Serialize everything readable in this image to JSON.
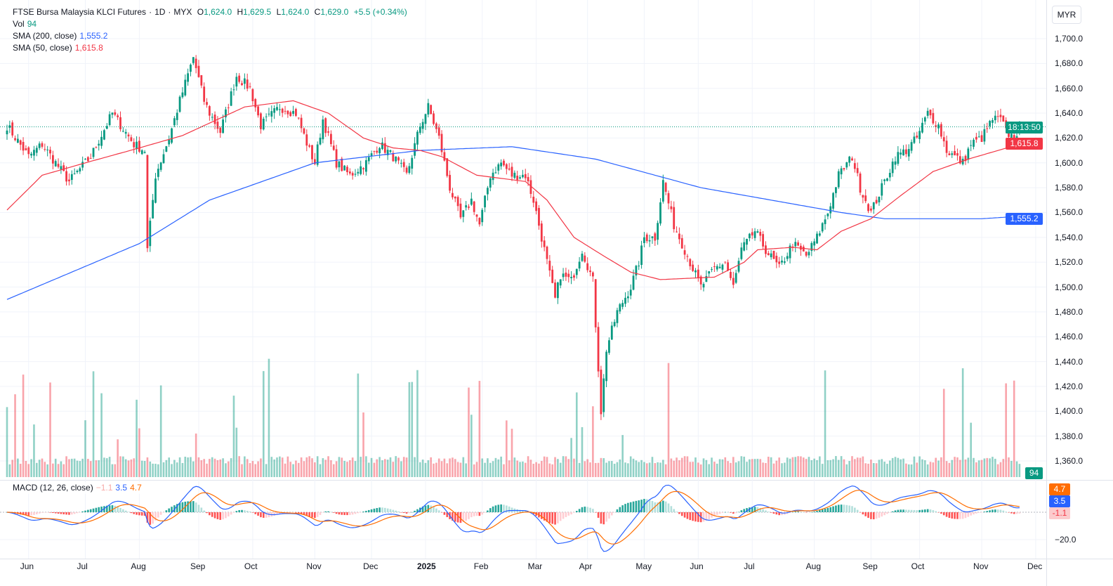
{
  "header": {
    "symbol": "FTSE Bursa Malaysia KLCI Futures",
    "sep1": "·",
    "interval": "1D",
    "sep2": "·",
    "exchange": "MYX",
    "o_label": "O",
    "open": "1,624.0",
    "h_label": "H",
    "high": "1,629.5",
    "l_label": "L",
    "low": "1,624.0",
    "c_label": "C",
    "close": "1,629.0",
    "change": "+5.5 (+0.34%)"
  },
  "vol": {
    "label": "Vol",
    "value": "94"
  },
  "sma200": {
    "label": "SMA (200, close)",
    "value": "1,555.2"
  },
  "sma50": {
    "label": "SMA (50, close)",
    "value": "1,615.8"
  },
  "macd": {
    "label": "MACD (12, 26, close)",
    "hist": "−1.1",
    "macd": "3.5",
    "signal": "4.7",
    "hist_tag": "-1.1",
    "macd_tag": "3.5",
    "signal_tag": "4.7",
    "axis_label": "−20.0"
  },
  "currency": "MYR",
  "countdown": "18:13:50",
  "volume_tag": "94",
  "colors": {
    "up": "#089981",
    "down": "#f23645",
    "sma200": "#2962ff",
    "sma50": "#f23645",
    "macd": "#2962ff",
    "signal": "#ff6d00"
  },
  "chart_data": {
    "type": "candlestick",
    "title": "FTSE Bursa Malaysia KLCI Futures · 1D · MYX",
    "ylim": [
      1350,
      1710
    ],
    "y_ticks": [
      1700,
      1680,
      1660,
      1640,
      1620,
      1600,
      1580,
      1560,
      1540,
      1520,
      1500,
      1480,
      1460,
      1440,
      1420,
      1400,
      1380,
      1360
    ],
    "y_tick_labels": [
      "1,700.0",
      "1,680.0",
      "1,660.0",
      "1,640.0",
      "1,620.0",
      "1,600.0",
      "1,580.0",
      "1,560.0",
      "1,540.0",
      "1,520.0",
      "1,500.0",
      "1,480.0",
      "1,460.0",
      "1,440.0",
      "1,420.0",
      "1,400.0",
      "1,380.0",
      "1,360.0"
    ],
    "bar_count": 376,
    "x_ticks": [
      {
        "bar": 8,
        "label": "Jun"
      },
      {
        "bar": 29,
        "label": "Jul"
      },
      {
        "bar": 49,
        "label": "Aug"
      },
      {
        "bar": 71,
        "label": "Sep"
      },
      {
        "bar": 91,
        "label": "Oct"
      },
      {
        "bar": 114,
        "label": "Nov"
      },
      {
        "bar": 135,
        "label": "Dec"
      },
      {
        "bar": 155,
        "label": "2025"
      },
      {
        "bar": 176,
        "label": "Feb"
      },
      {
        "bar": 196,
        "label": "Mar"
      },
      {
        "bar": 215,
        "label": "Apr"
      },
      {
        "bar": 236,
        "label": "May"
      },
      {
        "bar": 256,
        "label": "Jun"
      },
      {
        "bar": 276,
        "label": "Jul"
      },
      {
        "bar": 299,
        "label": "Aug"
      },
      {
        "bar": 320,
        "label": "Sep"
      },
      {
        "bar": 338,
        "label": "Oct"
      },
      {
        "bar": 361,
        "label": "Nov"
      },
      {
        "bar": 381,
        "label": "Dec"
      }
    ],
    "close_anchors": [
      [
        0,
        1630
      ],
      [
        8,
        1605
      ],
      [
        13,
        1615
      ],
      [
        23,
        1585
      ],
      [
        31,
        1605
      ],
      [
        39,
        1640
      ],
      [
        47,
        1615
      ],
      [
        51,
        1610
      ],
      [
        52,
        1530
      ],
      [
        55,
        1590
      ],
      [
        60,
        1620
      ],
      [
        64,
        1650
      ],
      [
        69,
        1685
      ],
      [
        73,
        1650
      ],
      [
        75,
        1640
      ],
      [
        79,
        1625
      ],
      [
        85,
        1670
      ],
      [
        90,
        1660
      ],
      [
        94,
        1630
      ],
      [
        101,
        1645
      ],
      [
        107,
        1640
      ],
      [
        112,
        1610
      ],
      [
        114,
        1600
      ],
      [
        117,
        1635
      ],
      [
        122,
        1600
      ],
      [
        127,
        1590
      ],
      [
        133,
        1600
      ],
      [
        138,
        1615
      ],
      [
        143,
        1605
      ],
      [
        148,
        1590
      ],
      [
        153,
        1630
      ],
      [
        156,
        1645
      ],
      [
        160,
        1620
      ],
      [
        164,
        1580
      ],
      [
        168,
        1555
      ],
      [
        172,
        1570
      ],
      [
        175,
        1550
      ],
      [
        179,
        1590
      ],
      [
        183,
        1600
      ],
      [
        187,
        1590
      ],
      [
        192,
        1590
      ],
      [
        195,
        1570
      ],
      [
        199,
        1530
      ],
      [
        203,
        1490
      ],
      [
        205,
        1510
      ],
      [
        209,
        1505
      ],
      [
        213,
        1530
      ],
      [
        217,
        1505
      ],
      [
        218,
        1470
      ],
      [
        220,
        1400
      ],
      [
        222,
        1450
      ],
      [
        226,
        1480
      ],
      [
        231,
        1500
      ],
      [
        234,
        1520
      ],
      [
        236,
        1540
      ],
      [
        240,
        1540
      ],
      [
        243,
        1585
      ],
      [
        247,
        1550
      ],
      [
        251,
        1530
      ],
      [
        255,
        1510
      ],
      [
        257,
        1500
      ],
      [
        262,
        1515
      ],
      [
        266,
        1520
      ],
      [
        269,
        1500
      ],
      [
        272,
        1530
      ],
      [
        277,
        1545
      ],
      [
        281,
        1530
      ],
      [
        286,
        1515
      ],
      [
        291,
        1535
      ],
      [
        296,
        1525
      ],
      [
        300,
        1540
      ],
      [
        304,
        1560
      ],
      [
        308,
        1590
      ],
      [
        313,
        1605
      ],
      [
        316,
        1580
      ],
      [
        320,
        1560
      ],
      [
        322,
        1570
      ],
      [
        326,
        1590
      ],
      [
        329,
        1605
      ],
      [
        333,
        1610
      ],
      [
        337,
        1620
      ],
      [
        341,
        1640
      ],
      [
        345,
        1630
      ],
      [
        348,
        1610
      ],
      [
        354,
        1600
      ],
      [
        357,
        1615
      ],
      [
        361,
        1620
      ],
      [
        365,
        1635
      ],
      [
        368,
        1635
      ],
      [
        370,
        1625
      ],
      [
        373,
        1620
      ],
      [
        375,
        1629
      ]
    ],
    "sma200_anchors": [
      [
        0,
        1490
      ],
      [
        49,
        1535
      ],
      [
        75,
        1570
      ],
      [
        114,
        1600
      ],
      [
        153,
        1610
      ],
      [
        187,
        1613
      ],
      [
        218,
        1603
      ],
      [
        257,
        1580
      ],
      [
        283,
        1570
      ],
      [
        309,
        1560
      ],
      [
        325,
        1555
      ],
      [
        361,
        1555
      ],
      [
        375,
        1557
      ]
    ],
    "sma50_anchors": [
      [
        0,
        1562
      ],
      [
        13,
        1590
      ],
      [
        29,
        1600
      ],
      [
        49,
        1612
      ],
      [
        65,
        1622
      ],
      [
        75,
        1632
      ],
      [
        88,
        1645
      ],
      [
        106,
        1650
      ],
      [
        119,
        1640
      ],
      [
        132,
        1620
      ],
      [
        143,
        1612
      ],
      [
        153,
        1610
      ],
      [
        161,
        1605
      ],
      [
        174,
        1590
      ],
      [
        192,
        1585
      ],
      [
        200,
        1570
      ],
      [
        210,
        1540
      ],
      [
        221,
        1525
      ],
      [
        231,
        1512
      ],
      [
        242,
        1506
      ],
      [
        252,
        1507
      ],
      [
        262,
        1508
      ],
      [
        273,
        1520
      ],
      [
        278,
        1530
      ],
      [
        291,
        1532
      ],
      [
        300,
        1530
      ],
      [
        309,
        1545
      ],
      [
        320,
        1555
      ],
      [
        330,
        1572
      ],
      [
        343,
        1593
      ],
      [
        356,
        1603
      ],
      [
        375,
        1615
      ]
    ],
    "last_price": 1629.0,
    "sma200_last": 1555.2,
    "sma50_last": 1615.8,
    "volume_last": 94,
    "macd_last": {
      "macd": 3.5,
      "signal": 4.7,
      "histogram": -1.1
    },
    "macd_ylim": [
      -30,
      20
    ],
    "legend": "top-left",
    "grid": true
  }
}
